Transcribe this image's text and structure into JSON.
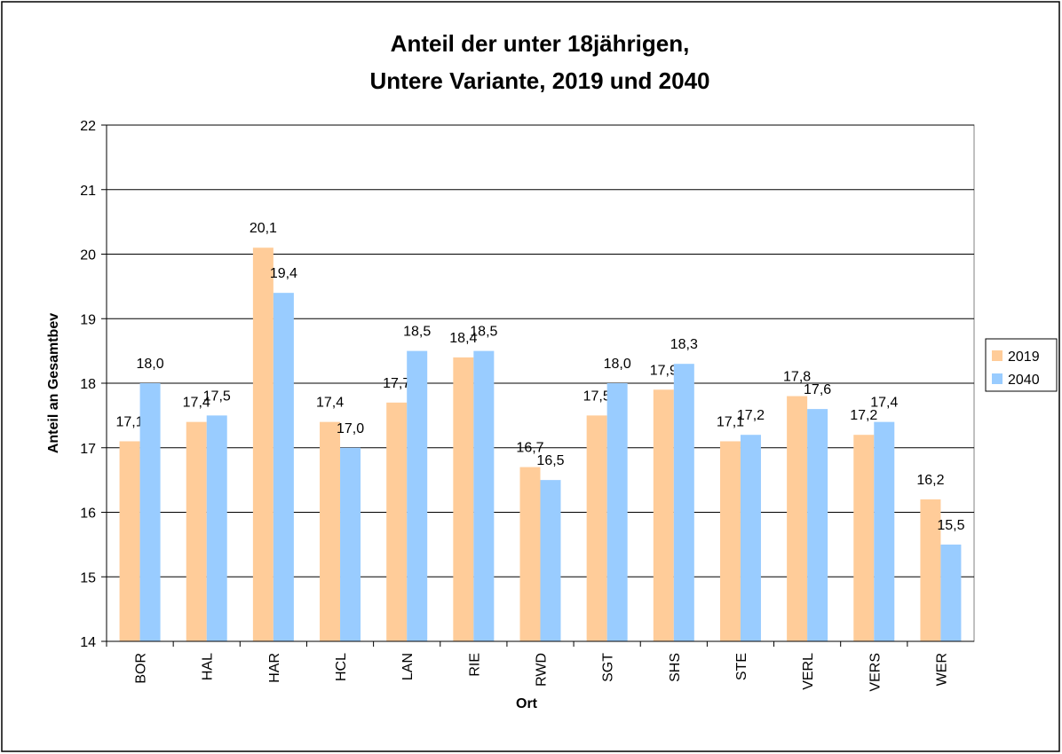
{
  "chart_data": {
    "type": "bar",
    "title": [
      "Anteil der unter 18jährigen,",
      "Untere Variante, 2019 und 2040"
    ],
    "x_label": "Ort",
    "y_label": "Anteil an Gesamtbev",
    "categories": [
      "BOR",
      "HAL",
      "HAR",
      "HCL",
      "LAN",
      "RIE",
      "RWD",
      "SGT",
      "SHS",
      "STE",
      "VERL",
      "VERS",
      "WER"
    ],
    "series": [
      {
        "name": "2019",
        "color": "#ffcc99",
        "values": [
          17.1,
          17.4,
          20.1,
          17.4,
          17.7,
          18.4,
          16.7,
          17.5,
          17.9,
          17.1,
          17.8,
          17.2,
          16.2
        ],
        "value_labels": [
          "17,1",
          "17,4",
          "20,1",
          "17,4",
          "17,7",
          "18,4",
          "16,7",
          "17,5",
          "17,9",
          "17,1",
          "17,8",
          "17,2",
          "16,2"
        ]
      },
      {
        "name": "2040",
        "color": "#99ccff",
        "values": [
          18.0,
          17.5,
          19.4,
          17.0,
          18.5,
          18.5,
          16.5,
          18.0,
          18.3,
          17.2,
          17.6,
          17.4,
          15.5
        ],
        "value_labels": [
          "18,0",
          "17,5",
          "19,4",
          "17,0",
          "18,5",
          "18,5",
          "16,5",
          "18,0",
          "18,3",
          "17,2",
          "17,6",
          "17,4",
          "15,5"
        ]
      }
    ],
    "ylim": [
      14,
      22
    ],
    "yticks": [
      14,
      15,
      16,
      17,
      18,
      19,
      20,
      21,
      22
    ],
    "grid": true,
    "legend": "right"
  }
}
